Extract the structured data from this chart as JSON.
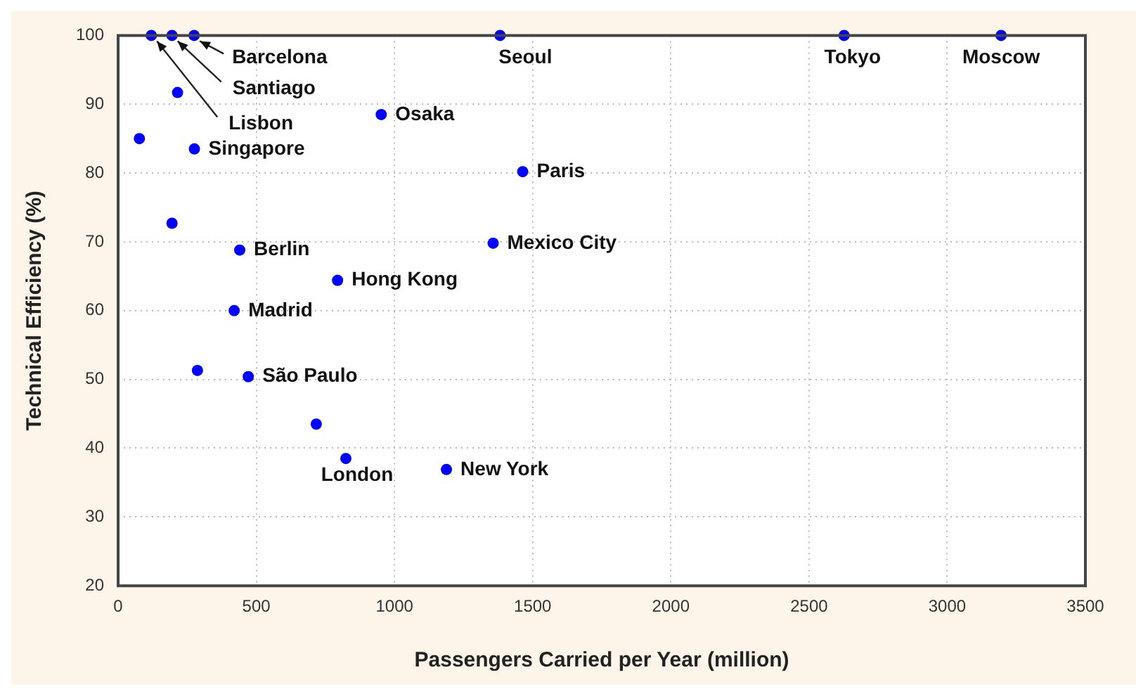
{
  "chart_data": {
    "type": "scatter",
    "xlabel": "Passengers Carried per Year (million)",
    "ylabel": "Technical Efficiency (%)",
    "series": [
      {
        "color": "#0000ff",
        "x": [
          120,
          195,
          275,
          1382,
          2627,
          3195,
          215,
          77,
          276,
          195,
          440,
          952,
          1464,
          1357,
          794,
          420,
          287,
          471,
          717,
          824,
          1188
        ],
        "values": [
          100,
          100,
          100,
          100,
          100,
          100,
          91.7,
          85,
          83.5,
          72.7,
          68.8,
          88.5,
          80.2,
          69.8,
          64.4,
          60,
          51.3,
          50.4,
          43.5,
          38.5,
          36.9
        ]
      }
    ],
    "xlim": [
      0,
      3500
    ],
    "xticks": [
      0,
      500,
      1000,
      1500,
      2000,
      2500,
      3000,
      3500
    ],
    "ylim": [
      20,
      100
    ],
    "yticks": [
      20,
      30,
      40,
      50,
      60,
      70,
      80,
      90,
      100
    ],
    "grid": true,
    "marker": "circle",
    "annotations": [
      {
        "text": "Barcelona",
        "x": 275,
        "y": 100
      },
      {
        "text": "Santiago",
        "x": 195,
        "y": 100
      },
      {
        "text": "Lisbon",
        "x": 120,
        "y": 100
      },
      {
        "text": "Seoul",
        "x": 1382,
        "y": 100
      },
      {
        "text": "Tokyo",
        "x": 2627,
        "y": 100
      },
      {
        "text": "Moscow",
        "x": 3195,
        "y": 100
      },
      {
        "text": "Osaka",
        "x": 952,
        "y": 88.5
      },
      {
        "text": "Singapore",
        "x": 276,
        "y": 83.5
      },
      {
        "text": "Paris",
        "x": 1464,
        "y": 80.2
      },
      {
        "text": "Berlin",
        "x": 440,
        "y": 68.8
      },
      {
        "text": "Mexico City",
        "x": 1357,
        "y": 69.8
      },
      {
        "text": "Hong Kong",
        "x": 794,
        "y": 64.4
      },
      {
        "text": "Madrid",
        "x": 420,
        "y": 60
      },
      {
        "text": "São Paulo",
        "x": 471,
        "y": 50.4
      },
      {
        "text": "London",
        "x": 824,
        "y": 38.5
      },
      {
        "text": "New York",
        "x": 1188,
        "y": 36.9
      }
    ]
  }
}
